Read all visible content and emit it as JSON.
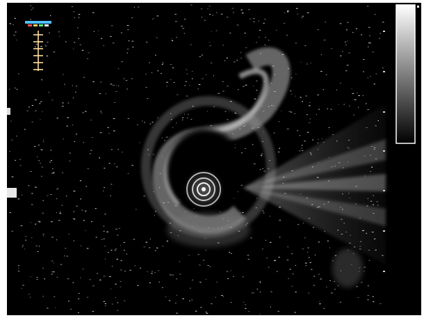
{
  "image": {
    "kind": "ultrasound-frame",
    "background_color": "#000000",
    "page_color": "#ffffff",
    "grayscale_bar": {
      "top_color": "#ffffff",
      "bottom_color": "#000000"
    },
    "orientation_marker": {
      "colors": [
        "#ff5050",
        "#ffd050",
        "#50c0ff",
        "#ffffff"
      ]
    },
    "icons": [
      "grayscale-bar-icon",
      "orientation-marker-icon",
      "depth-scale-icon",
      "probe-center-icon"
    ]
  }
}
